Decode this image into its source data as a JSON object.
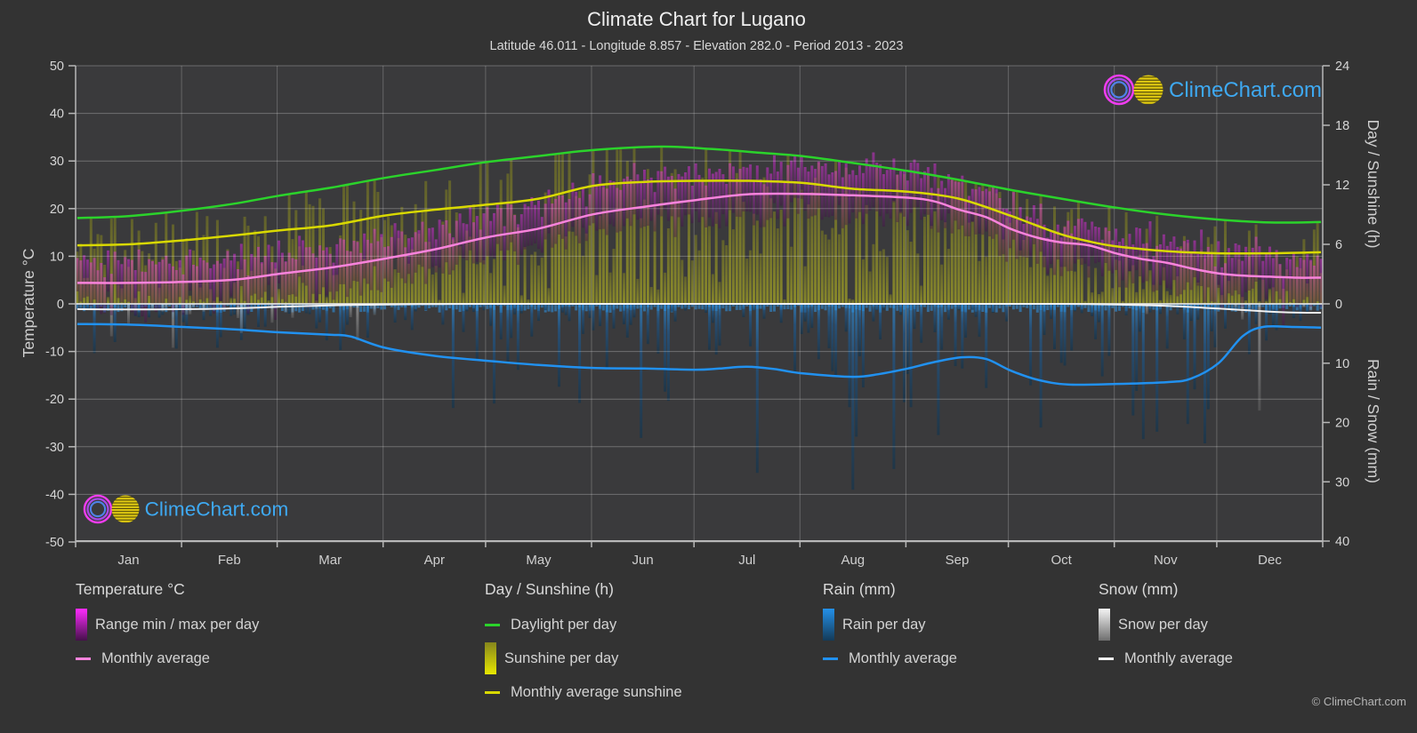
{
  "header": {
    "title": "Climate Chart for Lugano",
    "subtitle": "Latitude 46.011 - Longitude 8.857 - Elevation 282.0 - Period 2013 - 2023"
  },
  "watermark": {
    "text": "ClimeChart.com",
    "copyright": "© ClimeChart.com"
  },
  "axes": {
    "left": {
      "label": "Temperature °C",
      "ticks": [
        50,
        40,
        30,
        20,
        10,
        0,
        -10,
        -20,
        -30,
        -40,
        -50
      ]
    },
    "right_top": {
      "label": "Day / Sunshine (h)",
      "ticks": [
        24,
        18,
        12,
        6,
        0
      ]
    },
    "right_bottom": {
      "label": "Rain / Snow (mm)",
      "ticks": [
        10,
        20,
        30,
        40
      ]
    },
    "x": {
      "months": [
        "Jan",
        "Feb",
        "Mar",
        "Apr",
        "May",
        "Jun",
        "Jul",
        "Aug",
        "Sep",
        "Oct",
        "Nov",
        "Dec"
      ]
    }
  },
  "legend": {
    "groups": [
      {
        "title": "Temperature °C",
        "items": [
          {
            "swatch": "bar",
            "colors": [
              "#ff2bff",
              "#45104a"
            ],
            "label": "Range min / max per day"
          },
          {
            "swatch": "line",
            "colors": [
              "#f883dc"
            ],
            "label": "Monthly average"
          }
        ]
      },
      {
        "title": "Day / Sunshine (h)",
        "items": [
          {
            "swatch": "line",
            "colors": [
              "#2bd32b"
            ],
            "label": "Daylight per day"
          },
          {
            "swatch": "bar",
            "colors": [
              "#86861c",
              "#e8e800"
            ],
            "label": "Sunshine per day"
          },
          {
            "swatch": "line",
            "colors": [
              "#d9d900"
            ],
            "label": "Monthly average sunshine"
          }
        ]
      },
      {
        "title": "Rain (mm)",
        "items": [
          {
            "swatch": "bar",
            "colors": [
              "#2491ea",
              "#143a58"
            ],
            "label": "Rain per day"
          },
          {
            "swatch": "line",
            "colors": [
              "#2191f0"
            ],
            "label": "Monthly average"
          }
        ]
      },
      {
        "title": "Snow (mm)",
        "items": [
          {
            "swatch": "bar",
            "colors": [
              "#f5f5f5",
              "#6f6f6f"
            ],
            "label": "Snow per day"
          },
          {
            "swatch": "line",
            "colors": [
              "#f2f2f2"
            ],
            "label": "Monthly average"
          }
        ]
      }
    ]
  },
  "chart_data": {
    "type": "climate-composite",
    "months": [
      "Jan",
      "Feb",
      "Mar",
      "Apr",
      "May",
      "Jun",
      "Jul",
      "Aug",
      "Sep",
      "Oct",
      "Nov",
      "Dec"
    ],
    "axis_ranges": {
      "temperature_c": [
        -50,
        50
      ],
      "day_sunshine_h": [
        0,
        24
      ],
      "rain_snow_mm": [
        0,
        40
      ]
    },
    "grid": {
      "horizontal_every_c": 10,
      "vertical": "month-boundaries"
    },
    "series": [
      {
        "name": "Daylight per day",
        "unit": "h",
        "type": "line",
        "color": "#2bd32b",
        "monthly": [
          8.9,
          10.2,
          11.9,
          13.6,
          15.1,
          15.8,
          15.4,
          14.5,
          12.9,
          11.1,
          9.4,
          8.2
        ],
        "points": [
          [
            0,
            8.65
          ],
          [
            15,
            8.85
          ],
          [
            31,
            9.4
          ],
          [
            46,
            10.1
          ],
          [
            59,
            10.9
          ],
          [
            74,
            11.7
          ],
          [
            90,
            12.7
          ],
          [
            105,
            13.5
          ],
          [
            120,
            14.3
          ],
          [
            135,
            14.9
          ],
          [
            151,
            15.5
          ],
          [
            171,
            15.85
          ],
          [
            186,
            15.6
          ],
          [
            201,
            15.2
          ],
          [
            212,
            14.9
          ],
          [
            227,
            14.2
          ],
          [
            243,
            13.4
          ],
          [
            258,
            12.5
          ],
          [
            273,
            11.5
          ],
          [
            288,
            10.6
          ],
          [
            304,
            9.7
          ],
          [
            319,
            9.0
          ],
          [
            334,
            8.5
          ],
          [
            349,
            8.2
          ],
          [
            364,
            8.25
          ]
        ]
      },
      {
        "name": "Monthly average sunshine",
        "unit": "h",
        "type": "line",
        "color": "#d9d900",
        "monthly": [
          6.0,
          6.8,
          8.0,
          9.6,
          10.7,
          12.2,
          12.4,
          11.7,
          10.2,
          6.4,
          5.2,
          5.1
        ],
        "points": [
          [
            0,
            5.9
          ],
          [
            15,
            6.0
          ],
          [
            31,
            6.4
          ],
          [
            46,
            6.9
          ],
          [
            59,
            7.4
          ],
          [
            74,
            7.9
          ],
          [
            90,
            8.9
          ],
          [
            105,
            9.5
          ],
          [
            120,
            10.0
          ],
          [
            135,
            10.6
          ],
          [
            151,
            11.9
          ],
          [
            166,
            12.3
          ],
          [
            181,
            12.4
          ],
          [
            196,
            12.4
          ],
          [
            212,
            12.2
          ],
          [
            227,
            11.6
          ],
          [
            243,
            11.3
          ],
          [
            258,
            10.6
          ],
          [
            273,
            8.9
          ],
          [
            280,
            8.0
          ],
          [
            288,
            7.0
          ],
          [
            296,
            6.3
          ],
          [
            304,
            5.8
          ],
          [
            319,
            5.3
          ],
          [
            334,
            5.1
          ],
          [
            349,
            5.1
          ],
          [
            364,
            5.2
          ]
        ]
      },
      {
        "name": "Monthly average temperature",
        "unit": "°C",
        "type": "line",
        "color": "#f883dc",
        "monthly": [
          4.4,
          5.2,
          7.4,
          11.2,
          16.0,
          20.2,
          22.9,
          23.0,
          20.0,
          12.7,
          8.6,
          5.6
        ],
        "points": [
          [
            0,
            4.4
          ],
          [
            15,
            4.4
          ],
          [
            31,
            4.6
          ],
          [
            46,
            5.1
          ],
          [
            59,
            6.3
          ],
          [
            74,
            7.6
          ],
          [
            90,
            9.5
          ],
          [
            105,
            11.5
          ],
          [
            120,
            14.0
          ],
          [
            135,
            15.8
          ],
          [
            151,
            18.8
          ],
          [
            166,
            20.4
          ],
          [
            181,
            21.8
          ],
          [
            196,
            23.0
          ],
          [
            212,
            23.1
          ],
          [
            227,
            22.8
          ],
          [
            243,
            22.3
          ],
          [
            251,
            21.5
          ],
          [
            258,
            19.8
          ],
          [
            266,
            18.2
          ],
          [
            273,
            15.8
          ],
          [
            281,
            13.9
          ],
          [
            288,
            12.9
          ],
          [
            296,
            12.3
          ],
          [
            304,
            10.6
          ],
          [
            311,
            9.5
          ],
          [
            319,
            8.6
          ],
          [
            327,
            7.3
          ],
          [
            334,
            6.4
          ],
          [
            342,
            5.9
          ],
          [
            349,
            5.7
          ],
          [
            357,
            5.5
          ],
          [
            364,
            5.5
          ]
        ]
      },
      {
        "name": "Rain monthly average",
        "unit": "mm",
        "type": "line",
        "color": "#2191f0",
        "monthly": [
          3.5,
          4.4,
          5.1,
          8.3,
          10.1,
          10.9,
          10.9,
          12.1,
          9.8,
          13.4,
          13.2,
          4.1
        ],
        "points": [
          [
            0,
            3.4
          ],
          [
            15,
            3.5
          ],
          [
            31,
            3.9
          ],
          [
            46,
            4.3
          ],
          [
            59,
            4.8
          ],
          [
            74,
            5.2
          ],
          [
            80,
            5.5
          ],
          [
            90,
            7.4
          ],
          [
            105,
            8.8
          ],
          [
            120,
            9.6
          ],
          [
            135,
            10.3
          ],
          [
            151,
            10.8
          ],
          [
            166,
            10.9
          ],
          [
            181,
            11.1
          ],
          [
            188,
            10.9
          ],
          [
            196,
            10.6
          ],
          [
            204,
            11.0
          ],
          [
            212,
            11.7
          ],
          [
            227,
            12.3
          ],
          [
            235,
            11.8
          ],
          [
            243,
            10.9
          ],
          [
            251,
            9.8
          ],
          [
            259,
            9.0
          ],
          [
            266,
            9.3
          ],
          [
            273,
            11.2
          ],
          [
            281,
            12.8
          ],
          [
            290,
            13.6
          ],
          [
            304,
            13.5
          ],
          [
            319,
            13.2
          ],
          [
            326,
            12.6
          ],
          [
            334,
            10.0
          ],
          [
            341,
            5.5
          ],
          [
            347,
            3.9
          ],
          [
            356,
            3.9
          ],
          [
            364,
            4.0
          ]
        ]
      },
      {
        "name": "Snow monthly average",
        "unit": "mm",
        "type": "line",
        "color": "#f2f2f2",
        "monthly": [
          0.9,
          0.8,
          0.3,
          0.0,
          0.0,
          0.0,
          0.0,
          0.0,
          0.0,
          0.05,
          0.4,
          1.4
        ],
        "points": [
          [
            0,
            0.9
          ],
          [
            15,
            0.95
          ],
          [
            31,
            0.9
          ],
          [
            46,
            0.75
          ],
          [
            59,
            0.5
          ],
          [
            74,
            0.25
          ],
          [
            90,
            0.1
          ],
          [
            105,
            0.03
          ],
          [
            120,
            0
          ],
          [
            151,
            0
          ],
          [
            181,
            0
          ],
          [
            212,
            0
          ],
          [
            243,
            0
          ],
          [
            273,
            0
          ],
          [
            288,
            0
          ],
          [
            304,
            0.1
          ],
          [
            319,
            0.35
          ],
          [
            334,
            0.8
          ],
          [
            349,
            1.3
          ],
          [
            356,
            1.45
          ],
          [
            364,
            1.5
          ]
        ]
      }
    ],
    "daily_bars": {
      "description": "Semi-transparent per-day bars: sunshine (0..h), temperature range (min..max), rain and snow (0..mm downward)",
      "rain_probability_by_month": [
        0.38,
        0.38,
        0.45,
        0.55,
        0.6,
        0.55,
        0.5,
        0.52,
        0.5,
        0.55,
        0.5,
        0.35
      ],
      "snow_probability_by_month": [
        0.25,
        0.22,
        0.12,
        0.02,
        0,
        0,
        0,
        0,
        0,
        0,
        0.08,
        0.22
      ],
      "snow_scale_mm_by_month": [
        4,
        4,
        2.5,
        1.5,
        0,
        0,
        0,
        0,
        0,
        0,
        3,
        5
      ],
      "temp_half_range_c": 4.5,
      "summer_max_boost_c": 2.2,
      "max_daily_rain_mm": 40
    }
  },
  "logo": {
    "ring_colors": [
      "#ef3cef",
      "#a94ae8",
      "#4f82e8"
    ],
    "sun_color": "#e3cd12",
    "text_color": "#3ea9f2"
  }
}
